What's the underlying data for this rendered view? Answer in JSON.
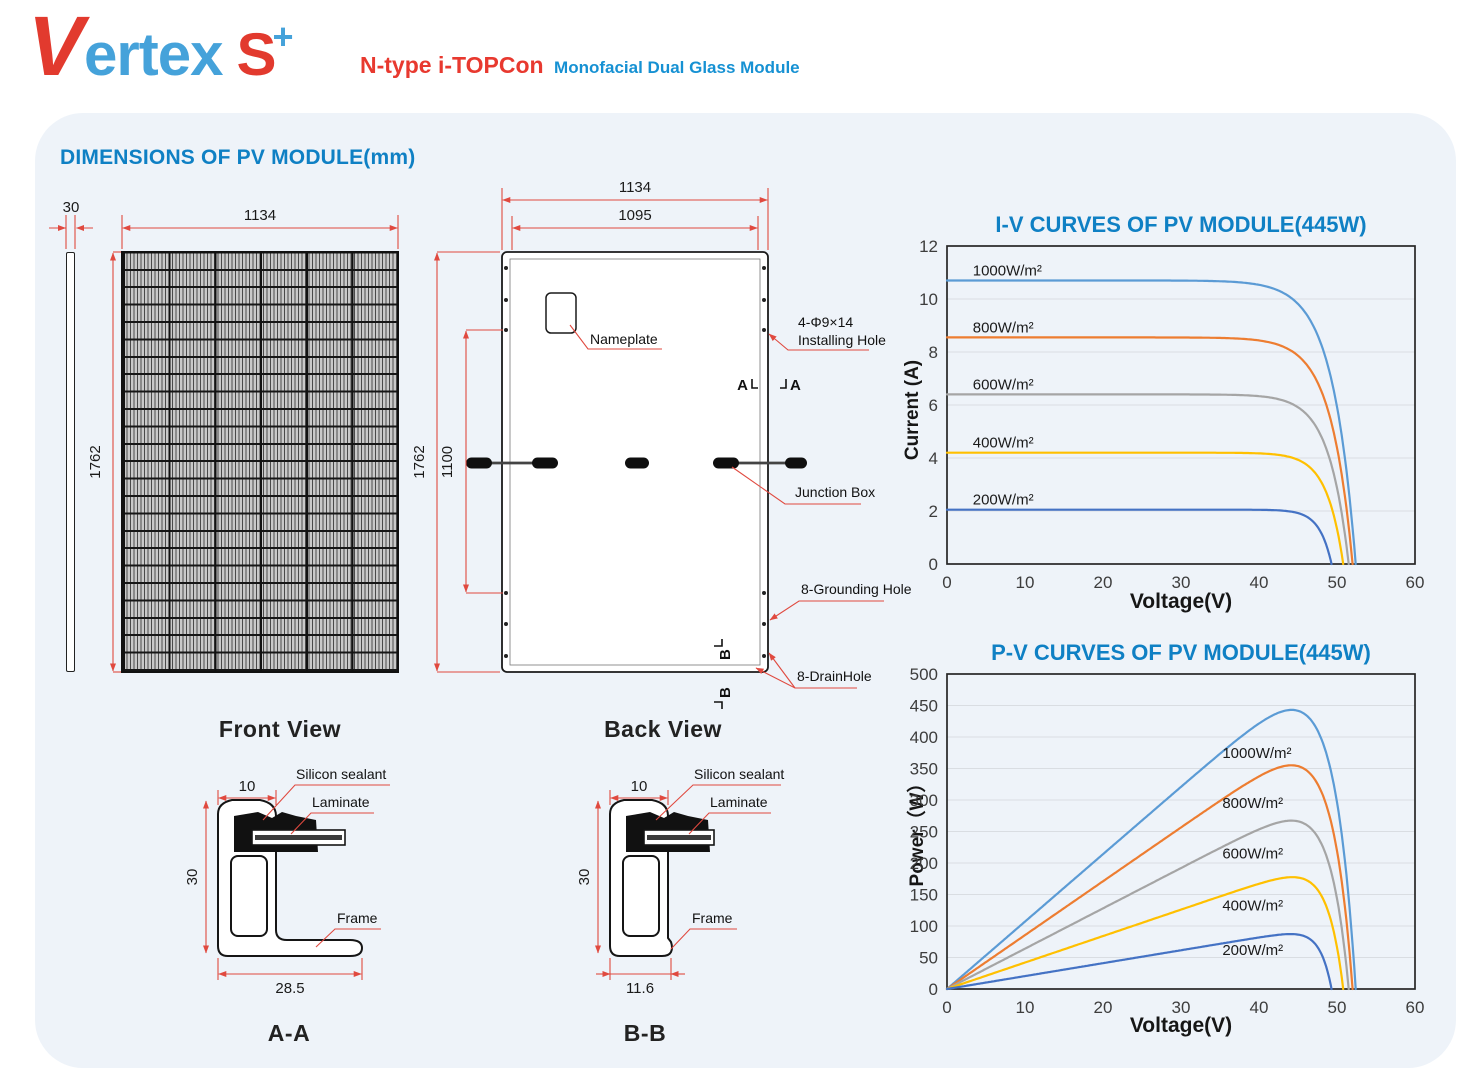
{
  "header": {
    "logo_v": "V",
    "logo_rest": "ertex",
    "logo_s": "S",
    "logo_plus": "+",
    "subtitle_red": "N-type i-TOPCon",
    "subtitle_blue": "Monofacial Dual Glass Module"
  },
  "section": {
    "title": "DIMENSIONS OF PV MODULE(mm)"
  },
  "drawings": {
    "front": {
      "dim_thickness": "30",
      "dim_width": "1134",
      "dim_height": "1762",
      "caption": "Front View"
    },
    "back": {
      "dim_width": "1134",
      "dim_inner_width": "1095",
      "dim_height": "1762",
      "dim_span": "1100",
      "caption": "Back View",
      "nameplate": "Nameplate",
      "installing_hole_line1": "4-Φ9×14",
      "installing_hole_line2": "Installing Hole",
      "junction_box": "Junction Box",
      "grounding_hole": "8-Grounding Hole",
      "drain_hole": "8-DrainHole",
      "mark_a": "A",
      "mark_b": "B"
    },
    "aa": {
      "dim_top": "10",
      "dim_side": "30",
      "dim_bottom": "28.5",
      "caption": "A-A",
      "sealant": "Silicon sealant",
      "laminate": "Laminate",
      "frame": "Frame"
    },
    "bb": {
      "dim_top": "10",
      "dim_side": "30",
      "dim_bottom": "11.6",
      "caption": "B-B",
      "sealant": "Silicon sealant",
      "laminate": "Laminate",
      "frame": "Frame"
    }
  },
  "chart_data": [
    {
      "type": "line",
      "title": "I-V CURVES OF PV MODULE(445W)",
      "xlabel": "Voltage(V)",
      "ylabel": "Current (A)",
      "xlim": [
        0,
        60
      ],
      "ylim": [
        0,
        12
      ],
      "xticks": [
        0,
        10,
        20,
        30,
        40,
        50,
        60
      ],
      "yticks": [
        0,
        2,
        4,
        6,
        8,
        10,
        12
      ],
      "grid": "horizontal",
      "legend": "inline-labels",
      "label_x": 3.3,
      "series": [
        {
          "name": "1000W/m²",
          "color": "#5B9BD5",
          "isc": 10.7,
          "voc": 52.4,
          "knee": 2.97
        },
        {
          "name": "800W/m²",
          "color": "#ED7D31",
          "isc": 8.55,
          "voc": 52.0,
          "knee": 2.78
        },
        {
          "name": "600W/m²",
          "color": "#A5A5A5",
          "isc": 6.4,
          "voc": 51.5,
          "knee": 2.52
        },
        {
          "name": "400W/m²",
          "color": "#FFC000",
          "isc": 4.2,
          "voc": 50.8,
          "knee": 2.11
        },
        {
          "name": "200W/m²",
          "color": "#4472C4",
          "isc": 2.05,
          "voc": 49.3,
          "knee": 1.56
        }
      ]
    },
    {
      "type": "line",
      "title": "P-V CURVES OF PV MODULE(445W)",
      "xlabel": "Voltage(V)",
      "ylabel": "Power（W）",
      "xlim": [
        0,
        60
      ],
      "ylim": [
        0,
        500
      ],
      "xticks": [
        0,
        10,
        20,
        30,
        40,
        50,
        60
      ],
      "yticks": [
        0,
        50,
        100,
        150,
        200,
        250,
        300,
        350,
        400,
        450,
        500
      ],
      "grid": "horizontal",
      "legend": "inline-labels",
      "label_x": 35.3,
      "series": [
        {
          "name": "1000W/m²",
          "color": "#5B9BD5",
          "isc": 10.7,
          "voc": 52.4,
          "knee": 2.97,
          "pmax": 443,
          "vmp": 44,
          "label_w": 367
        },
        {
          "name": "800W/m²",
          "color": "#ED7D31",
          "isc": 8.55,
          "voc": 52.0,
          "knee": 2.78,
          "pmax": 355,
          "vmp": 44,
          "label_w": 287
        },
        {
          "name": "600W/m²",
          "color": "#A5A5A5",
          "isc": 6.4,
          "voc": 51.5,
          "knee": 2.52,
          "pmax": 267,
          "vmp": 44.5,
          "label_w": 207
        },
        {
          "name": "400W/m²",
          "color": "#FFC000",
          "isc": 4.2,
          "voc": 50.8,
          "knee": 2.11,
          "pmax": 177,
          "vmp": 45,
          "label_w": 125
        },
        {
          "name": "200W/m²",
          "color": "#4472C4",
          "isc": 2.05,
          "voc": 49.3,
          "knee": 1.56,
          "pmax": 87,
          "vmp": 43.5,
          "label_w": 54
        }
      ]
    }
  ]
}
